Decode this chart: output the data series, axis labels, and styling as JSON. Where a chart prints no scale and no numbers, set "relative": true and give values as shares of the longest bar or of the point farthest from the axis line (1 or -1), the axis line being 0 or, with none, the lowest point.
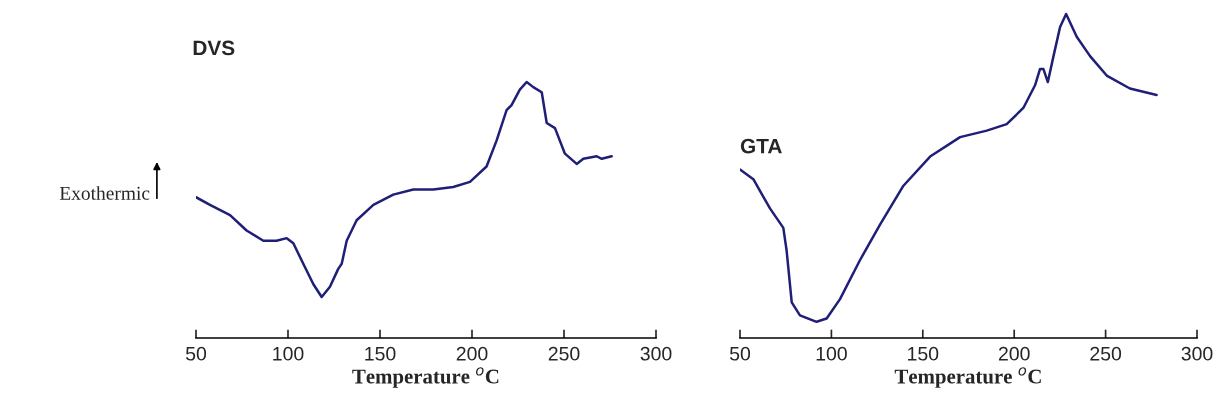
{
  "chart_data": [
    {
      "type": "line",
      "title": "DVS",
      "ylabel": "Exothermic",
      "xlabel": "Temperature $^{o}$C",
      "relative": true,
      "xlim": [
        50,
        300
      ],
      "xticks": [
        50,
        100,
        150,
        200,
        250,
        300
      ],
      "tick_labels": "x",
      "grid": false,
      "legend": false,
      "series": [
        {
          "color": "#1f1f78",
          "x": [
            50,
            57.6,
            68.5,
            77.5,
            86.6,
            93.8,
            99.3,
            102.9,
            108.3,
            113.8,
            118.3,
            122.8,
            127.3,
            129.2,
            131.9,
            137.3,
            146.4,
            157.2,
            168.1,
            179,
            189.8,
            198.9,
            207.9,
            213.3,
            218.8,
            221.5,
            226,
            229.7,
            233.3,
            237.9,
            240.6,
            245.1,
            250.5,
            256.9,
            260.5,
            267.8,
            270.5,
            275.9
          ],
          "values": [
            0.55,
            0.52,
            0.48,
            0.42,
            0.38,
            0.38,
            0.39,
            0.37,
            0.29,
            0.21,
            0.16,
            0.2,
            0.27,
            0.29,
            0.38,
            0.46,
            0.52,
            0.56,
            0.58,
            0.58,
            0.59,
            0.61,
            0.67,
            0.77,
            0.89,
            0.91,
            0.97,
            1.0,
            0.98,
            0.96,
            0.84,
            0.82,
            0.72,
            0.68,
            0.7,
            0.71,
            0.7,
            0.71
          ]
        }
      ]
    },
    {
      "type": "line",
      "title": "GTA",
      "xlabel": "Temperature $^{o}$C",
      "relative": true,
      "xlim": [
        50,
        300
      ],
      "xticks": [
        50,
        100,
        150,
        200,
        250,
        300
      ],
      "tick_labels": "x",
      "grid": false,
      "legend": false,
      "series": [
        {
          "color": "#1f1f78",
          "x": [
            50,
            57.3,
            66.4,
            73.7,
            75.5,
            78.3,
            82.8,
            91.9,
            97.4,
            104.7,
            115.6,
            126.6,
            139.4,
            154,
            170.4,
            185,
            195.9,
            205,
            211.4,
            214.1,
            216,
            218.4,
            221.5,
            225.1,
            228.4,
            234.2,
            241.5,
            250.6,
            263.3,
            277.9
          ],
          "values": [
            0.52,
            0.49,
            0.4,
            0.34,
            0.27,
            0.11,
            0.07,
            0.05,
            0.06,
            0.12,
            0.24,
            0.35,
            0.47,
            0.56,
            0.62,
            0.64,
            0.66,
            0.71,
            0.78,
            0.83,
            0.83,
            0.79,
            0.87,
            0.96,
            1.0,
            0.93,
            0.87,
            0.81,
            0.77,
            0.75
          ]
        }
      ]
    }
  ]
}
